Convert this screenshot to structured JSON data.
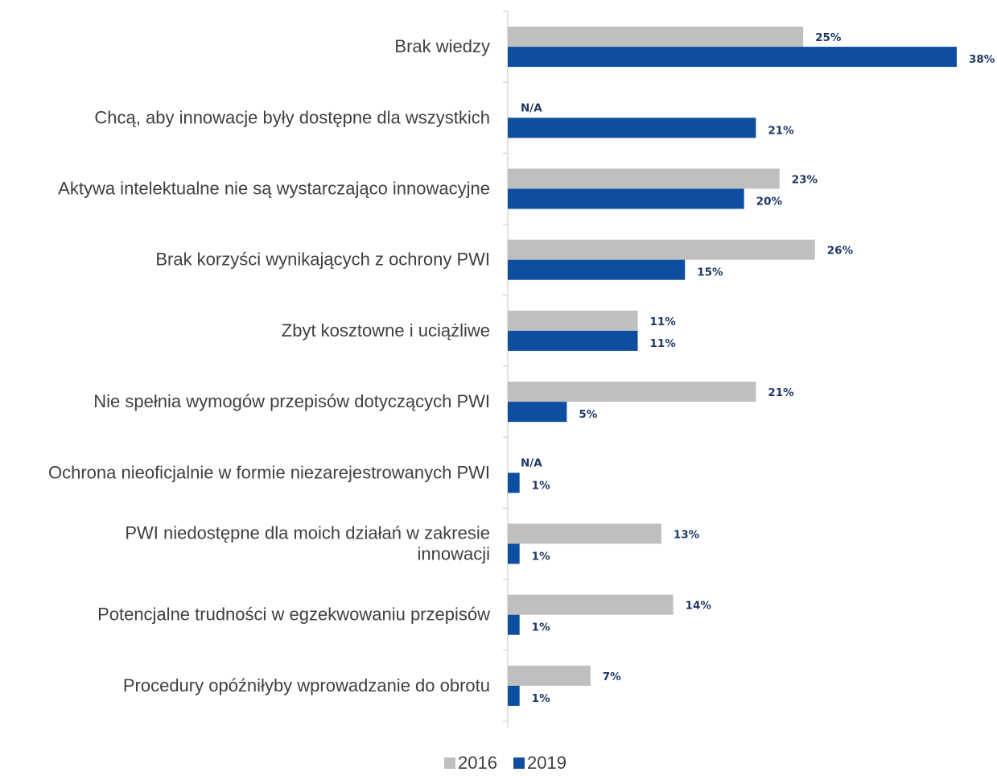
{
  "chart_data": {
    "type": "bar",
    "orientation": "horizontal",
    "title": "",
    "xlabel": "",
    "ylabel": "",
    "xlim": [
      0,
      38
    ],
    "grid": false,
    "legend_position": "bottom",
    "categories": [
      [
        "Brak wiedzy"
      ],
      [
        "Chcą, aby innowacje były dostępne dla wszystkich"
      ],
      [
        "Aktywa intelektualne nie są wystarczająco innowacyjne"
      ],
      [
        "Brak korzyści wynikających z ochrony PWI"
      ],
      [
        "Zbyt kosztowne i uciążliwe"
      ],
      [
        "Nie spełnia wymogów przepisów dotyczących PWI"
      ],
      [
        "Ochrona nieoficjalnie w formie niezarejestrowanych PWI"
      ],
      [
        "PWI niedostępne dla moich działań w zakresie",
        "innowacji"
      ],
      [
        "Potencjalne trudności w egzekwowaniu przepisów"
      ],
      [
        "Procedury opóźniłyby wprowadzanie do obrotu"
      ]
    ],
    "series": [
      {
        "name": "2016",
        "color": "#bfbfbf",
        "values": [
          25,
          null,
          23,
          26,
          11,
          21,
          null,
          13,
          14,
          7
        ],
        "labels": [
          "25%",
          "N/A",
          "23%",
          "26%",
          "11%",
          "21%",
          "N/A",
          "13%",
          "14%",
          "7%"
        ]
      },
      {
        "name": "2019",
        "color": "#0d4ea1",
        "values": [
          38,
          21,
          20,
          15,
          11,
          5,
          1,
          1,
          1,
          1
        ],
        "labels": [
          "38%",
          "21%",
          "20%",
          "15%",
          "11%",
          "5%",
          "1%",
          "1%",
          "1%",
          "1%"
        ]
      }
    ]
  }
}
